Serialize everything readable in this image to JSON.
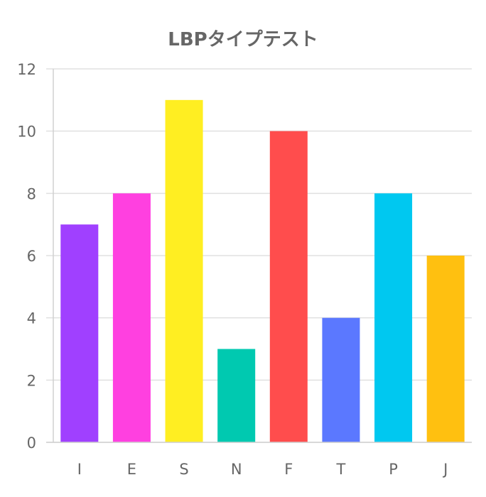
{
  "chart_data": {
    "type": "bar",
    "title": "LBPタイプテスト",
    "xlabel": "",
    "ylabel": "",
    "categories": [
      "I",
      "E",
      "S",
      "N",
      "F",
      "T",
      "P",
      "J"
    ],
    "values": [
      7,
      8,
      11,
      3,
      10,
      4,
      8,
      6
    ],
    "colors": [
      "#a040ff",
      "#ff40e0",
      "#ffee22",
      "#00c9b0",
      "#ff4d4d",
      "#5b78ff",
      "#00c8f0",
      "#ffc010"
    ],
    "ylim": [
      0,
      12
    ],
    "yticks": [
      0,
      2,
      4,
      6,
      8,
      10,
      12
    ],
    "grid": true,
    "legend": "none"
  }
}
